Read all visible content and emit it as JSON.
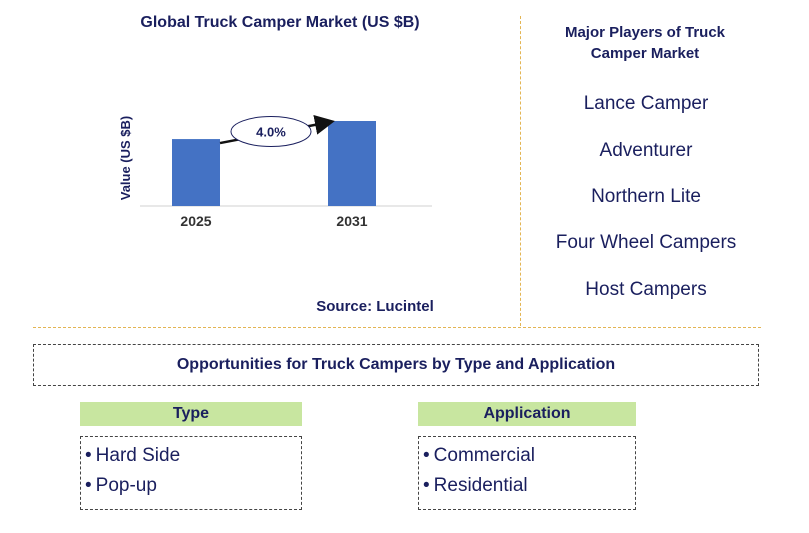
{
  "chart_data": {
    "type": "bar",
    "title": "Global Truck Camper Market (US $B)",
    "ylabel": "Value (US $B)",
    "categories": [
      "2025",
      "2031"
    ],
    "values": [
      1.0,
      1.27
    ],
    "annotation": "4.0%",
    "source": "Source: Lucintel",
    "bar_color": "#4472c4"
  },
  "players": {
    "title": "Major Players of Truck Camper Market",
    "items": [
      "Lance Camper",
      "Adventurer",
      "Northern Lite",
      "Four Wheel Campers",
      "Host Campers"
    ]
  },
  "opportunities": {
    "title": "Opportunities for Truck Campers by Type and Application",
    "type": {
      "header": "Type",
      "items": [
        "Hard Side",
        "Pop-up"
      ]
    },
    "application": {
      "header": "Application",
      "items": [
        "Commercial",
        "Residential"
      ]
    }
  },
  "colors": {
    "title_text": "#1a1f5e",
    "divider": "#e3b553",
    "header_fill": "#c8e6a0"
  }
}
